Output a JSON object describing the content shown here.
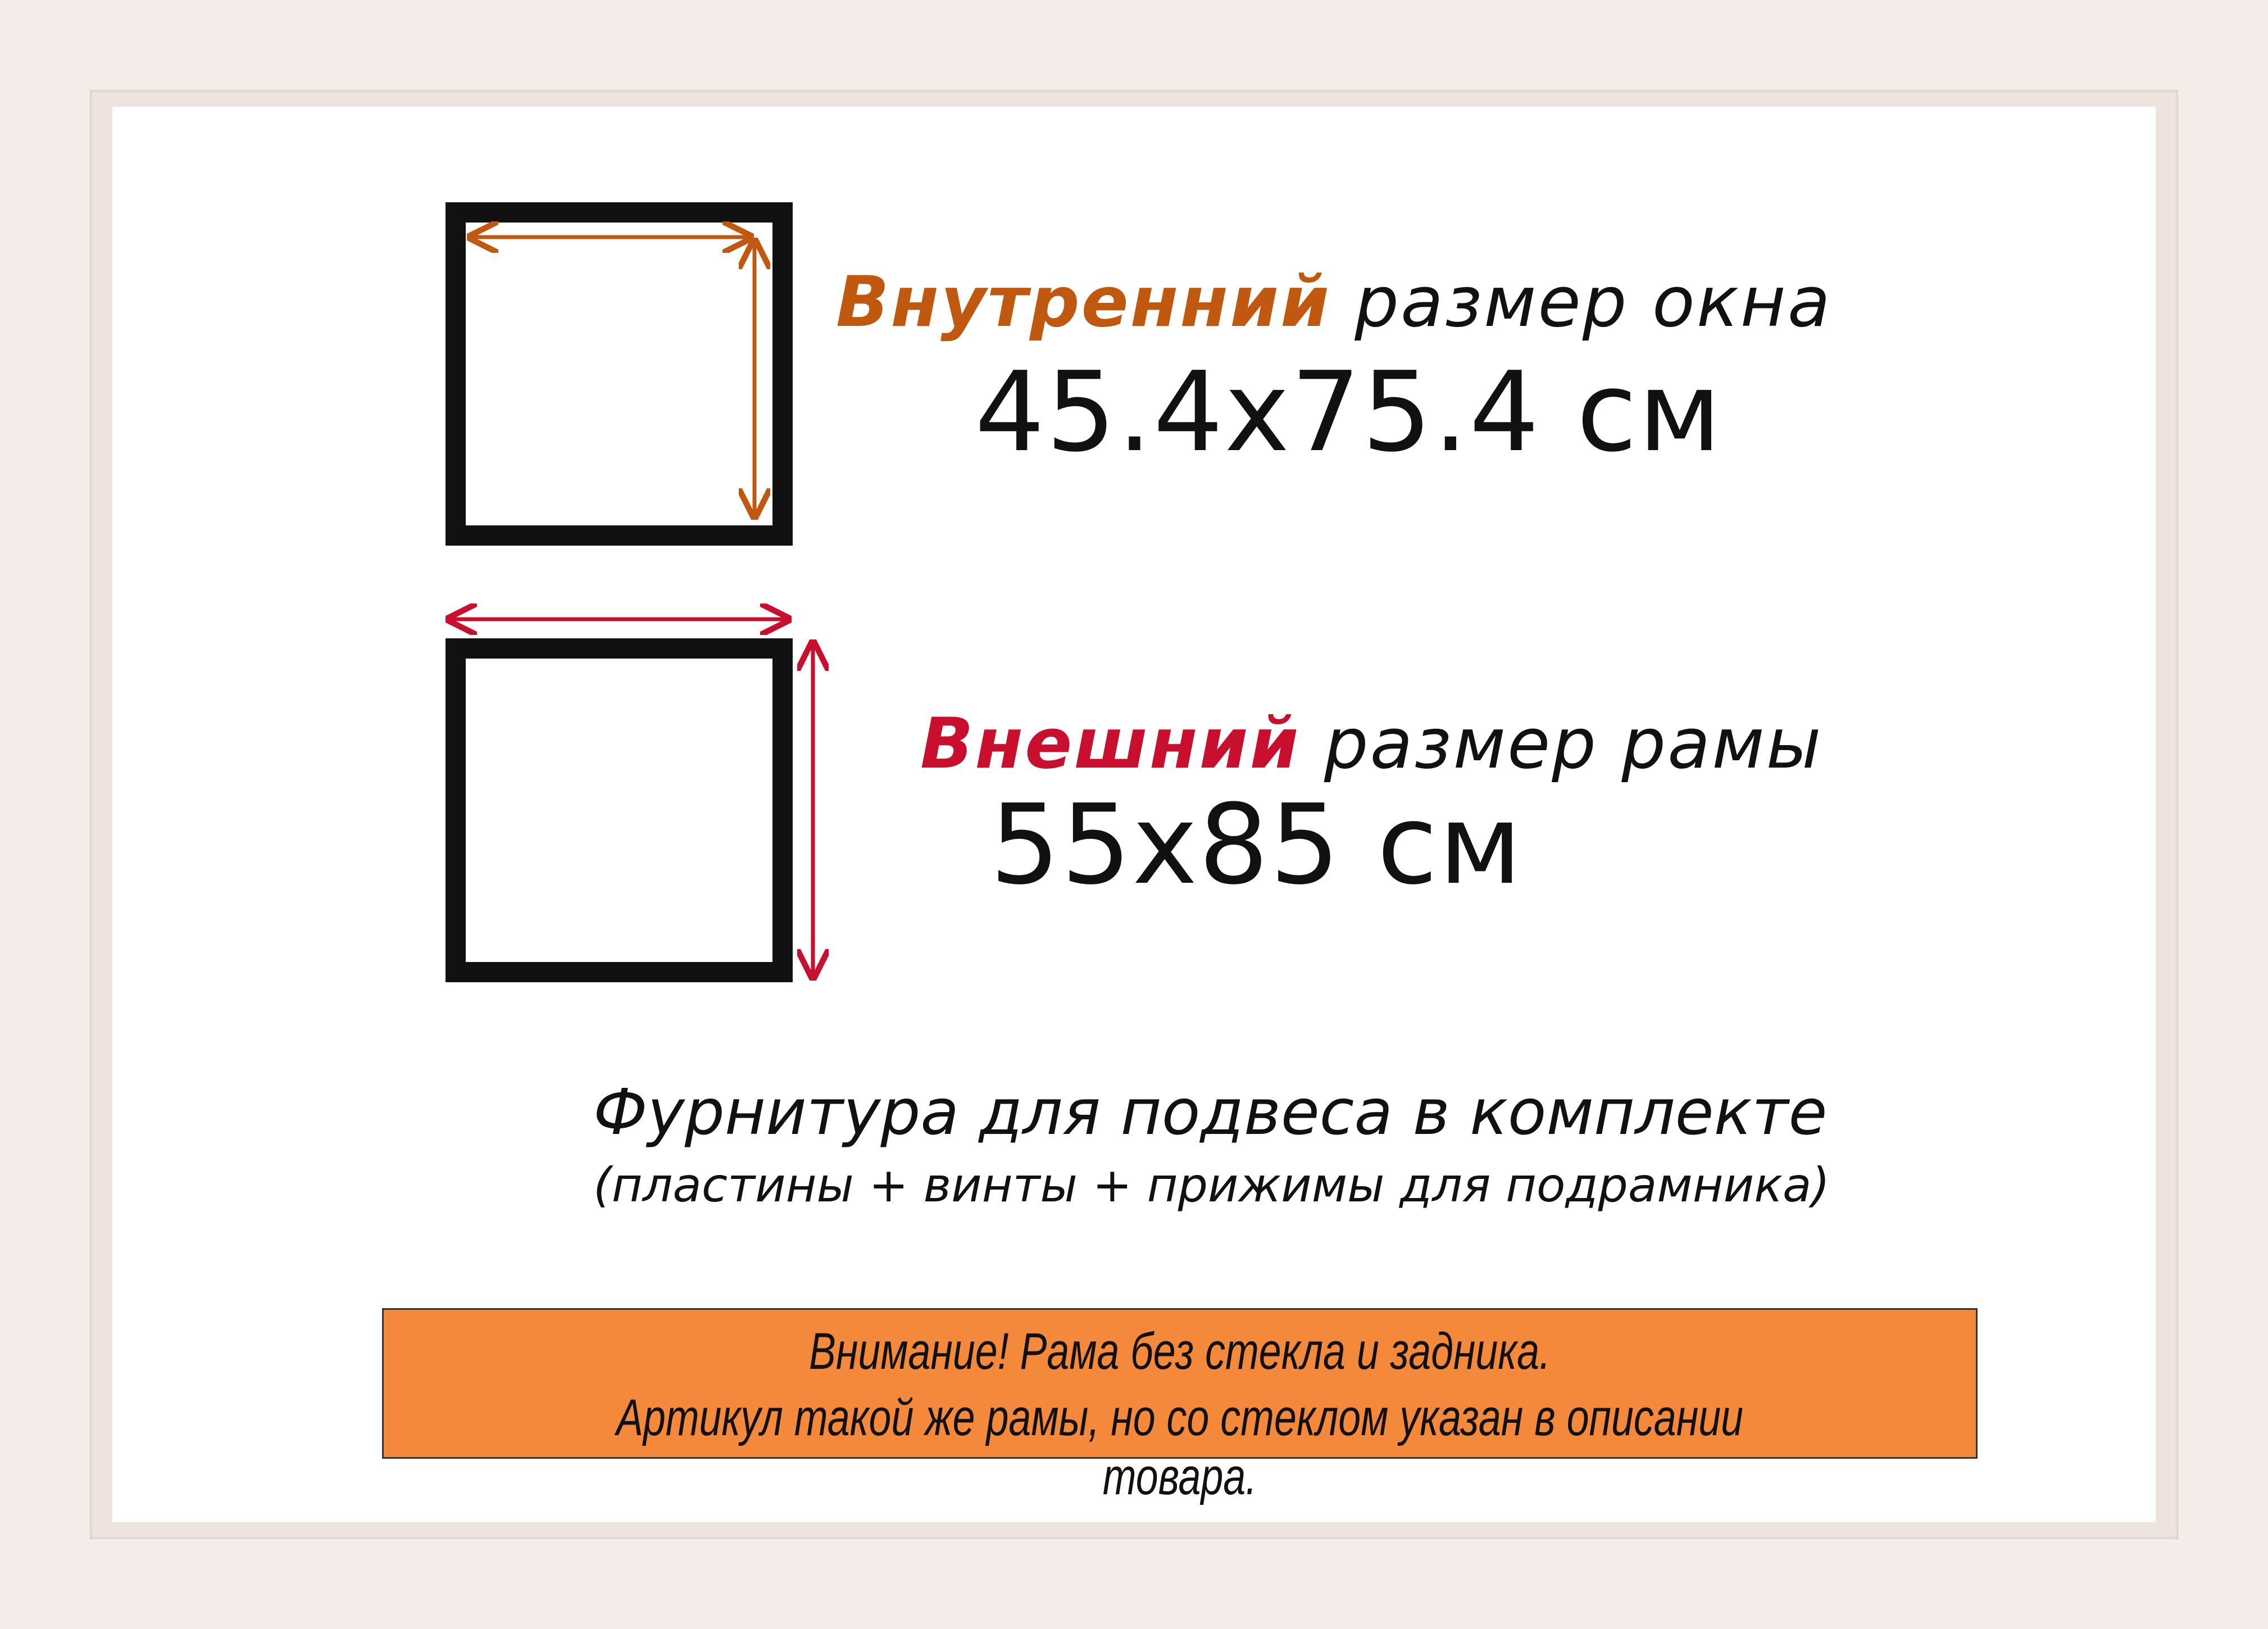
{
  "inner_size": {
    "highlight": "Внутренний",
    "rest": " размер окна",
    "value": "45.4x75.4 см",
    "color": "#c0580f"
  },
  "outer_size": {
    "highlight": "Внешний",
    "rest": " размер рамы",
    "value": "55x85 см",
    "color": "#c8102e"
  },
  "hardware": {
    "title": "Фурнитура для подвеса в комплекте",
    "subtitle": "(пластины + винты + прижимы для подрамника)"
  },
  "notice": {
    "line1": "Внимание! Рама без стекла и задника.",
    "line2": "Артикул такой же рамы, но со стеклом указан в описании товара.",
    "background": "#f4893b"
  }
}
